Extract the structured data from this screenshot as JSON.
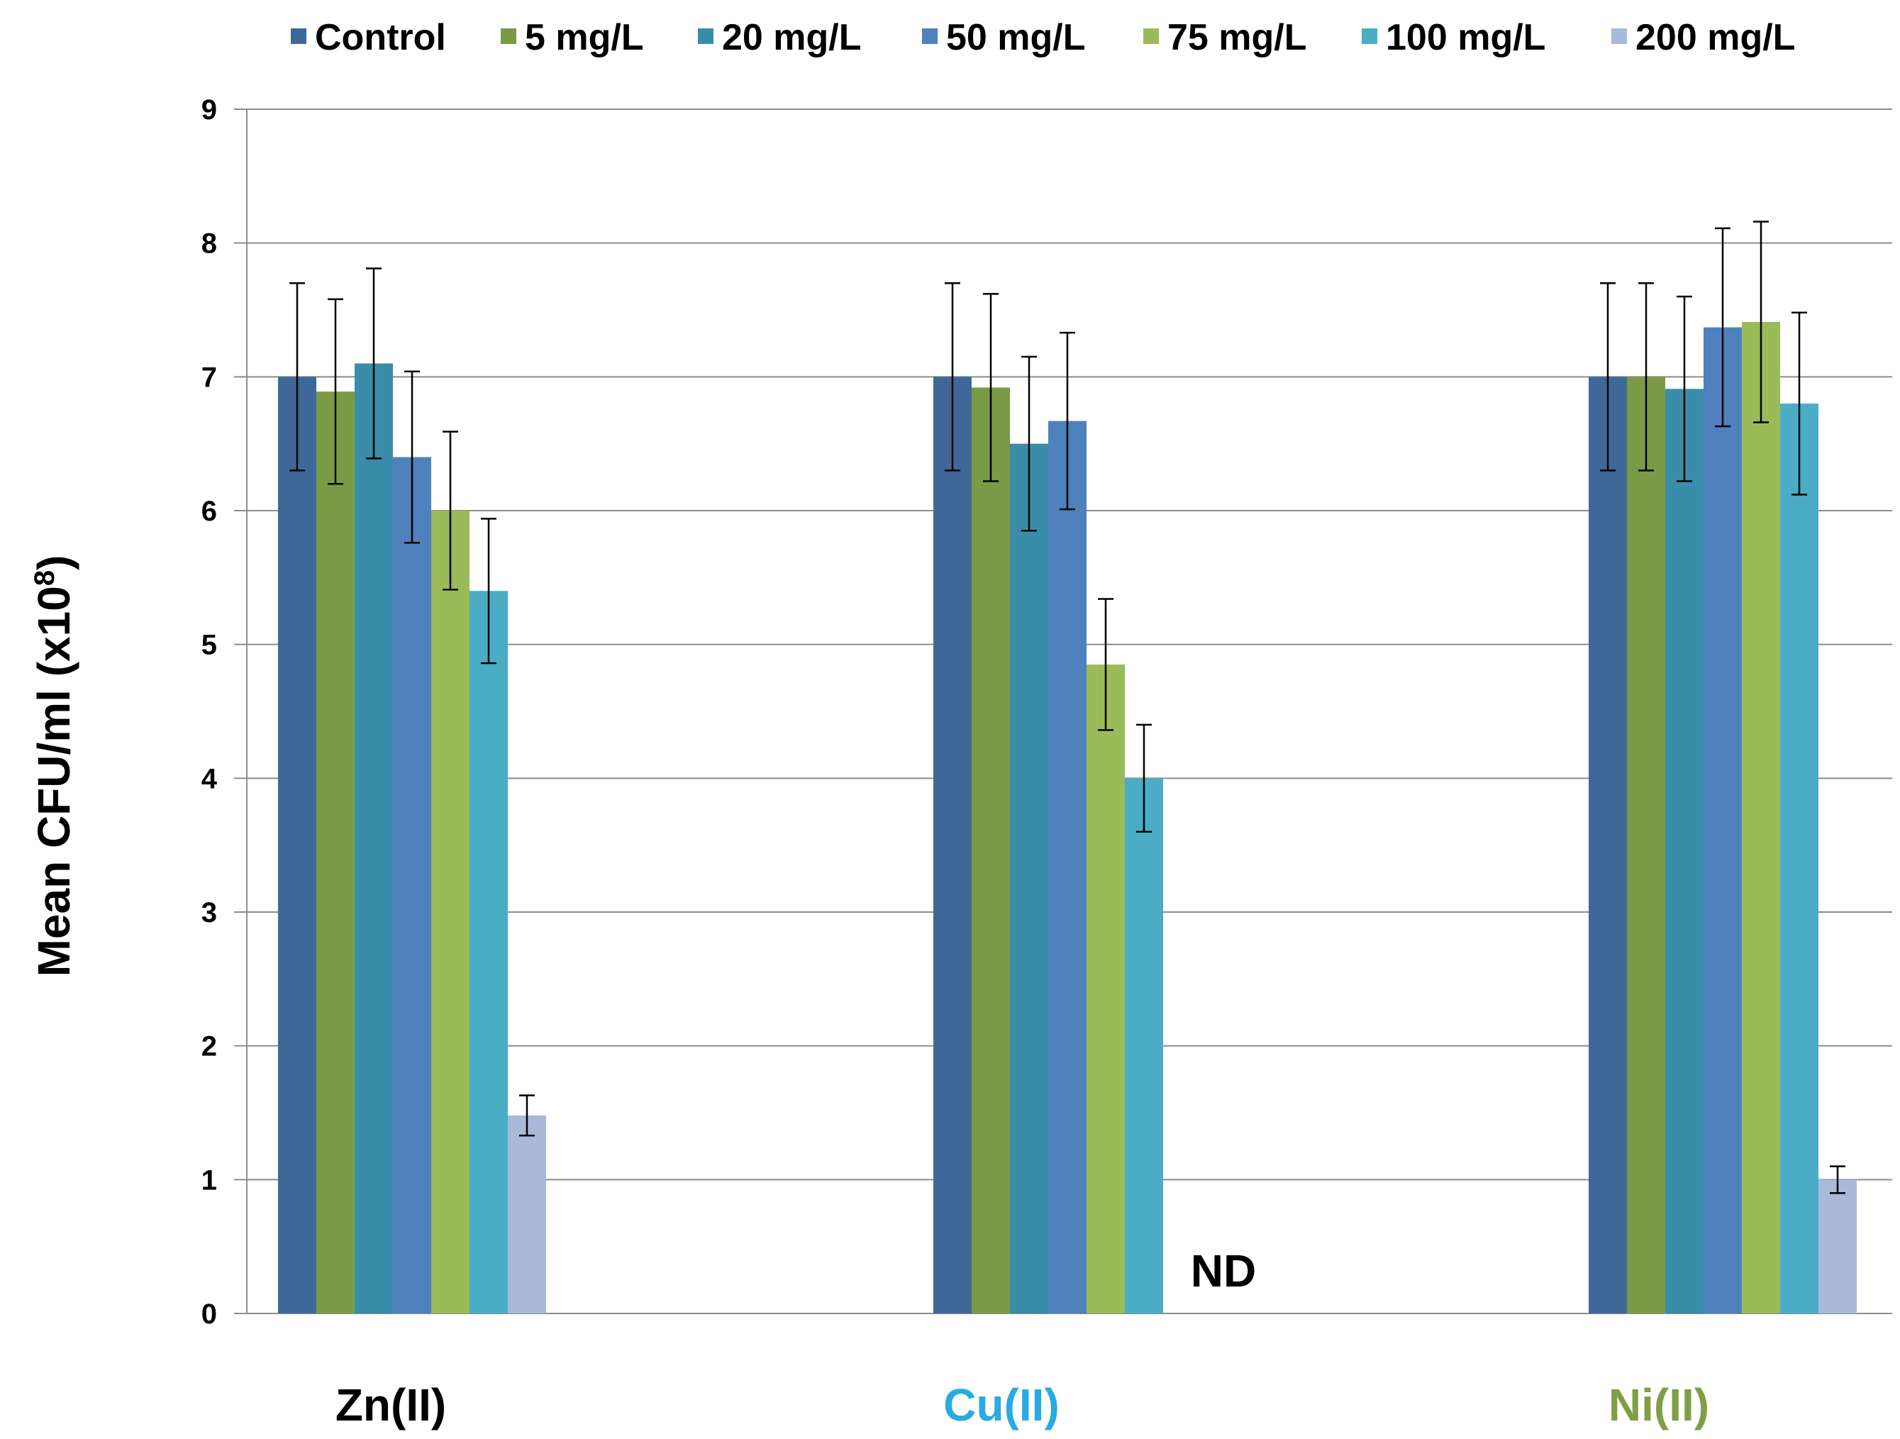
{
  "chart_data": {
    "type": "bar",
    "title": "",
    "xlabel": "",
    "ylabel": "Mean CFU/ml (x10",
    "ylabel_superscript": "8",
    "ylabel_suffix": ")",
    "ylim": [
      0,
      9
    ],
    "yticks": [
      "0",
      "1",
      "2",
      "3",
      "4",
      "5",
      "6",
      "7",
      "8",
      "9"
    ],
    "grid": "horizontal",
    "legend_position": "top",
    "categories": [
      "Zn(II)",
      "Cu(II)",
      "Ni(II)"
    ],
    "category_label_colors": [
      "#000000",
      "#29abe2",
      "#7f9f47"
    ],
    "series": [
      {
        "name": "Control",
        "color": "#3f6899",
        "values": [
          7.0,
          7.0,
          7.0
        ],
        "errors": [
          0.7,
          0.7,
          0.7
        ]
      },
      {
        "name": "5 mg/L",
        "color": "#7b9a46",
        "values": [
          6.89,
          6.92,
          7.0
        ],
        "errors": [
          0.69,
          0.7,
          0.7
        ]
      },
      {
        "name": "20 mg/L",
        "color": "#3a8da8",
        "values": [
          7.1,
          6.5,
          6.91
        ],
        "errors": [
          0.71,
          0.65,
          0.69
        ]
      },
      {
        "name": "50 mg/L",
        "color": "#4f81bd",
        "values": [
          6.4,
          6.67,
          7.37
        ],
        "errors": [
          0.64,
          0.66,
          0.74
        ]
      },
      {
        "name": "75 mg/L",
        "color": "#9bbb59",
        "values": [
          6.0,
          4.85,
          7.41
        ],
        "errors": [
          0.59,
          0.49,
          0.75
        ]
      },
      {
        "name": "100 mg/L",
        "color": "#4bacc6",
        "values": [
          5.4,
          4.0,
          6.8
        ],
        "errors": [
          0.54,
          0.4,
          0.68
        ]
      },
      {
        "name": "200 mg/L",
        "color": "#a9b9d9",
        "values": [
          1.48,
          null,
          1.0
        ],
        "errors": [
          0.15,
          null,
          0.1
        ]
      }
    ],
    "annotations": [
      {
        "text": "ND",
        "category": "Cu(II)",
        "series": "200 mg/L"
      }
    ]
  }
}
